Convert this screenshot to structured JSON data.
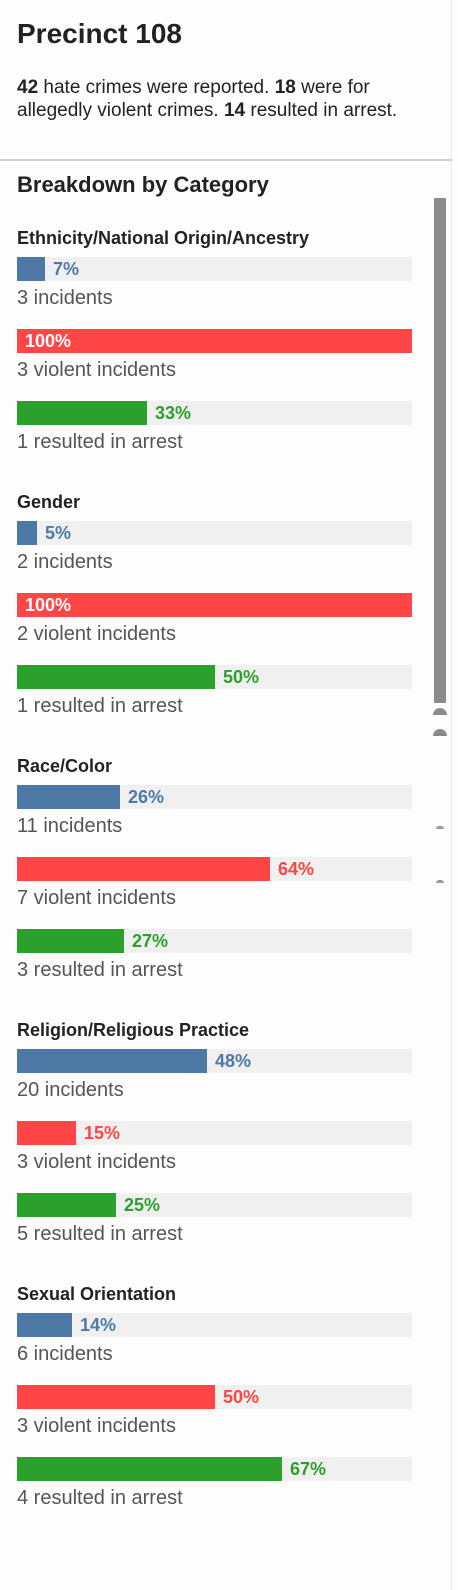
{
  "header": {
    "title": "Precinct 108",
    "summary": {
      "reported_count": "42",
      "reported_text": " hate crimes were reported. ",
      "violent_count": "18",
      "violent_text": " were for allegedly violent crimes. ",
      "arrest_count": "14",
      "arrest_text": " resulted in arrest."
    }
  },
  "breakdown": {
    "title": "Breakdown by Category",
    "colors": {
      "incidents": "#4e79a7",
      "violent": "#ff4545",
      "arrest": "#2ca02c"
    },
    "categories": [
      {
        "name": "Ethnicity/National Origin/Ancestry",
        "incidents": {
          "fraction": 0.07,
          "label": "7%",
          "text": "3 incidents"
        },
        "violent": {
          "fraction": 1.0,
          "label": "100%",
          "text": "3 violent incidents"
        },
        "arrest": {
          "fraction": 0.33,
          "label": "33%",
          "text": "1 resulted in arrest"
        }
      },
      {
        "name": "Gender",
        "incidents": {
          "fraction": 0.05,
          "label": "5%",
          "text": "2 incidents"
        },
        "violent": {
          "fraction": 1.0,
          "label": "100%",
          "text": "2 violent incidents"
        },
        "arrest": {
          "fraction": 0.5,
          "label": "50%",
          "text": "1 resulted in arrest"
        }
      },
      {
        "name": "Race/Color",
        "incidents": {
          "fraction": 0.26,
          "label": "26%",
          "text": "11 incidents"
        },
        "violent": {
          "fraction": 0.64,
          "label": "64%",
          "text": "7 violent incidents"
        },
        "arrest": {
          "fraction": 0.27,
          "label": "27%",
          "text": "3 resulted in arrest"
        }
      },
      {
        "name": "Religion/Religious Practice",
        "incidents": {
          "fraction": 0.48,
          "label": "48%",
          "text": "20 incidents"
        },
        "violent": {
          "fraction": 0.15,
          "label": "15%",
          "text": "3 violent incidents"
        },
        "arrest": {
          "fraction": 0.25,
          "label": "25%",
          "text": "5 resulted in arrest"
        }
      },
      {
        "name": "Sexual Orientation",
        "incidents": {
          "fraction": 0.14,
          "label": "14%",
          "text": "6 incidents"
        },
        "violent": {
          "fraction": 0.5,
          "label": "50%",
          "text": "3 violent incidents"
        },
        "arrest": {
          "fraction": 0.67,
          "label": "67%",
          "text": "4 resulted in arrest"
        }
      }
    ]
  }
}
